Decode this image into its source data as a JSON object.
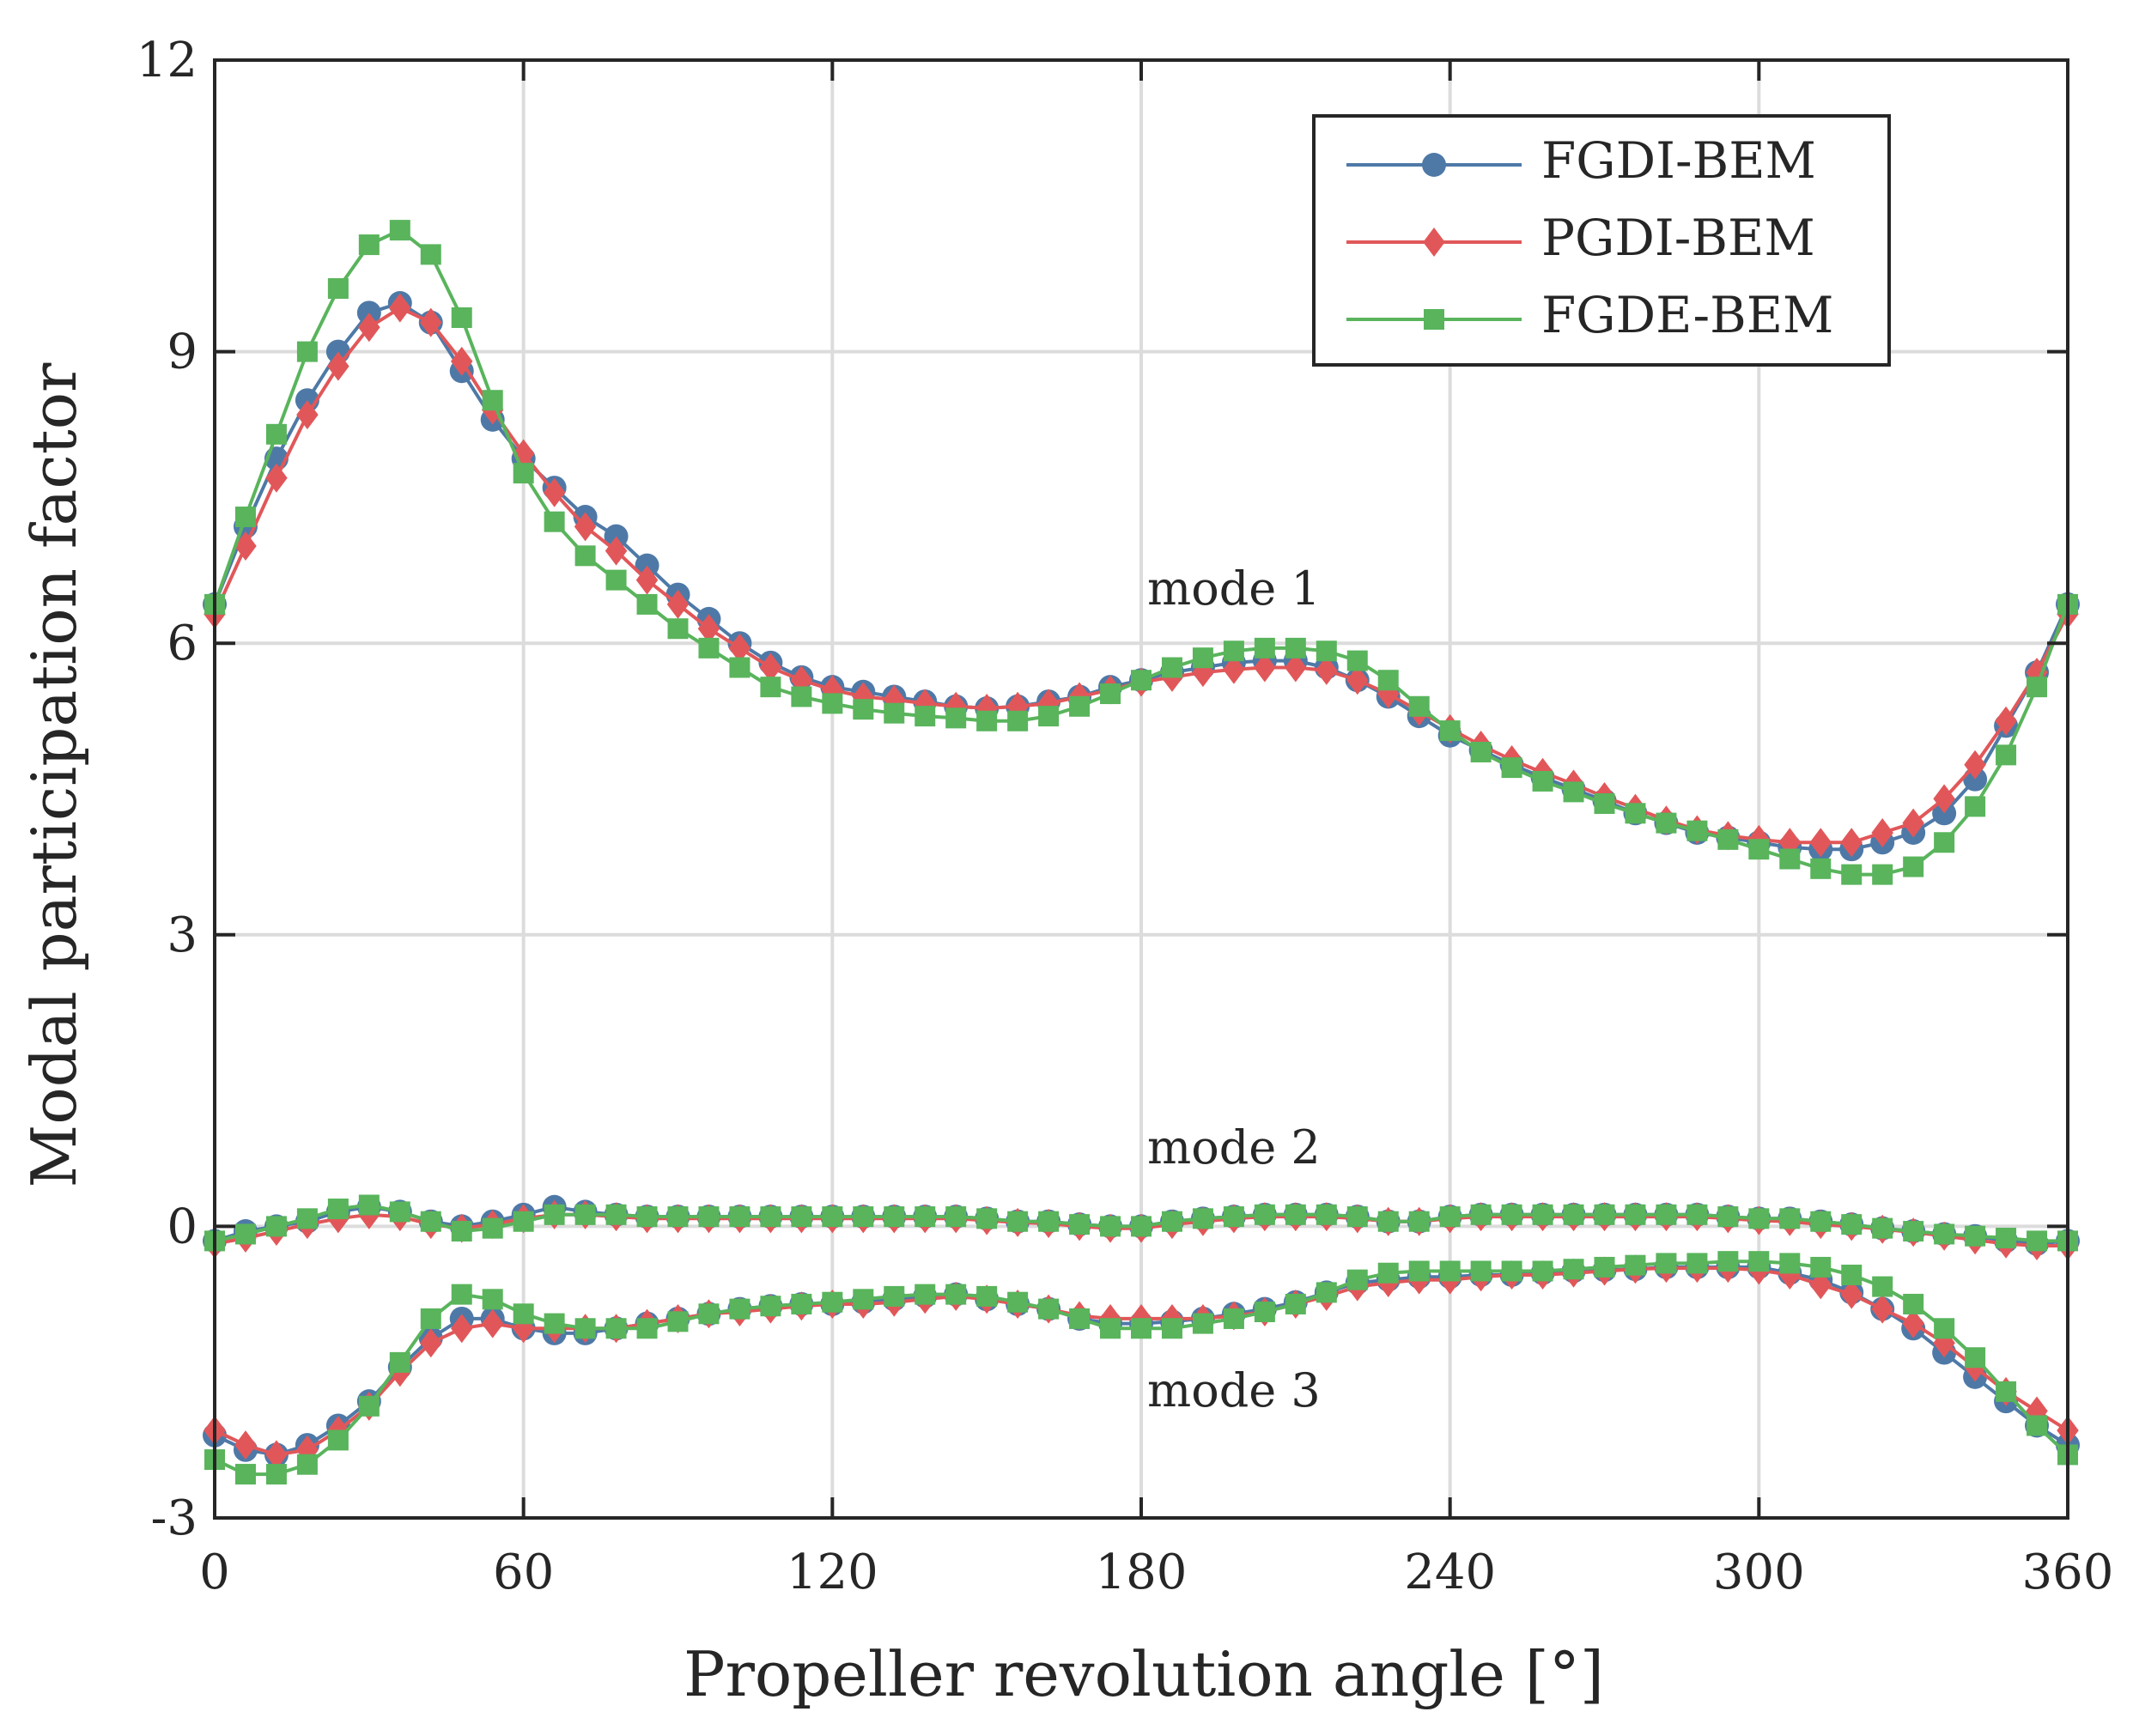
{
  "chart_data": {
    "type": "line",
    "xlabel": "Propeller revolution angle [°]",
    "ylabel": "Modal participation factor",
    "xlim": [
      0,
      360
    ],
    "ylim": [
      -3,
      12
    ],
    "xticks": [
      0,
      60,
      120,
      180,
      240,
      300,
      360
    ],
    "yticks": [
      -3,
      0,
      3,
      6,
      9,
      12
    ],
    "grid": true,
    "legend_position": "top-right",
    "legend": [
      "FGDI-BEM",
      "PGDI-BEM",
      "FGDE-BEM"
    ],
    "annotations": [
      {
        "text": "mode 1",
        "x": 198,
        "y": 6.4
      },
      {
        "text": "mode 2",
        "x": 198,
        "y": 0.65
      },
      {
        "text": "mode 3",
        "x": 198,
        "y": -1.85
      }
    ],
    "x": [
      0,
      6,
      12,
      18,
      24,
      30,
      36,
      42,
      48,
      54,
      60,
      66,
      72,
      78,
      84,
      90,
      96,
      102,
      108,
      114,
      120,
      126,
      132,
      138,
      144,
      150,
      156,
      162,
      168,
      174,
      180,
      186,
      192,
      198,
      204,
      210,
      216,
      222,
      228,
      234,
      240,
      246,
      252,
      258,
      264,
      270,
      276,
      282,
      288,
      294,
      300,
      306,
      312,
      318,
      324,
      330,
      336,
      342,
      348,
      354,
      360
    ],
    "series": [
      {
        "name": "FGDI-BEM",
        "mode": "mode 1",
        "color": "#4e79a7",
        "marker": "circle",
        "values": [
          6.4,
          7.2,
          7.9,
          8.5,
          9.0,
          9.4,
          9.5,
          9.3,
          8.8,
          8.3,
          7.9,
          7.6,
          7.3,
          7.1,
          6.8,
          6.5,
          6.25,
          6.0,
          5.8,
          5.65,
          5.55,
          5.5,
          5.45,
          5.4,
          5.35,
          5.33,
          5.35,
          5.4,
          5.45,
          5.55,
          5.62,
          5.7,
          5.75,
          5.8,
          5.82,
          5.82,
          5.75,
          5.62,
          5.45,
          5.25,
          5.05,
          4.9,
          4.75,
          4.62,
          4.5,
          4.38,
          4.25,
          4.15,
          4.05,
          4.0,
          3.95,
          3.9,
          3.88,
          3.88,
          3.95,
          4.05,
          4.25,
          4.6,
          5.15,
          5.7,
          6.4
        ]
      },
      {
        "name": "FGDI-BEM",
        "mode": "mode 2",
        "color": "#4e79a7",
        "marker": "circle",
        "values": [
          -0.15,
          -0.05,
          0.0,
          0.05,
          0.15,
          0.2,
          0.15,
          0.05,
          0.0,
          0.05,
          0.12,
          0.2,
          0.15,
          0.12,
          0.1,
          0.1,
          0.1,
          0.1,
          0.1,
          0.1,
          0.1,
          0.1,
          0.1,
          0.1,
          0.1,
          0.08,
          0.05,
          0.05,
          0.02,
          0.0,
          0.0,
          0.05,
          0.08,
          0.1,
          0.12,
          0.12,
          0.12,
          0.1,
          0.05,
          0.05,
          0.1,
          0.12,
          0.12,
          0.12,
          0.12,
          0.12,
          0.12,
          0.12,
          0.12,
          0.1,
          0.08,
          0.08,
          0.05,
          0.02,
          -0.02,
          -0.05,
          -0.08,
          -0.1,
          -0.15,
          -0.18,
          -0.15
        ]
      },
      {
        "name": "FGDI-BEM",
        "mode": "mode 3",
        "color": "#4e79a7",
        "marker": "circle",
        "values": [
          -2.15,
          -2.3,
          -2.35,
          -2.25,
          -2.05,
          -1.8,
          -1.45,
          -1.15,
          -0.95,
          -0.95,
          -1.05,
          -1.1,
          -1.1,
          -1.05,
          -1.0,
          -0.95,
          -0.9,
          -0.85,
          -0.82,
          -0.8,
          -0.8,
          -0.78,
          -0.75,
          -0.72,
          -0.7,
          -0.75,
          -0.8,
          -0.85,
          -0.95,
          -1.0,
          -1.0,
          -0.98,
          -0.95,
          -0.9,
          -0.85,
          -0.78,
          -0.68,
          -0.58,
          -0.55,
          -0.52,
          -0.52,
          -0.5,
          -0.5,
          -0.48,
          -0.46,
          -0.45,
          -0.44,
          -0.42,
          -0.42,
          -0.42,
          -0.42,
          -0.48,
          -0.55,
          -0.68,
          -0.85,
          -1.05,
          -1.3,
          -1.55,
          -1.8,
          -2.05,
          -2.25
        ]
      },
      {
        "name": "PGDI-BEM",
        "mode": "mode 1",
        "color": "#e15759",
        "marker": "diamond",
        "values": [
          6.3,
          7.0,
          7.7,
          8.35,
          8.85,
          9.25,
          9.45,
          9.3,
          8.9,
          8.4,
          7.95,
          7.55,
          7.2,
          6.95,
          6.65,
          6.4,
          6.15,
          5.95,
          5.75,
          5.62,
          5.52,
          5.45,
          5.42,
          5.38,
          5.35,
          5.33,
          5.35,
          5.38,
          5.45,
          5.52,
          5.6,
          5.65,
          5.7,
          5.73,
          5.75,
          5.75,
          5.72,
          5.62,
          5.48,
          5.3,
          5.12,
          4.95,
          4.8,
          4.67,
          4.55,
          4.42,
          4.3,
          4.18,
          4.08,
          4.02,
          3.98,
          3.95,
          3.95,
          3.95,
          4.05,
          4.15,
          4.4,
          4.75,
          5.2,
          5.7,
          6.3
        ]
      },
      {
        "name": "PGDI-BEM",
        "mode": "mode 2",
        "color": "#e15759",
        "marker": "diamond",
        "values": [
          -0.18,
          -0.12,
          -0.05,
          0.02,
          0.08,
          0.12,
          0.1,
          0.02,
          -0.02,
          0.02,
          0.08,
          0.12,
          0.12,
          0.1,
          0.08,
          0.08,
          0.08,
          0.08,
          0.08,
          0.08,
          0.08,
          0.08,
          0.08,
          0.08,
          0.08,
          0.06,
          0.04,
          0.03,
          0.0,
          -0.02,
          -0.02,
          0.02,
          0.05,
          0.08,
          0.1,
          0.1,
          0.1,
          0.08,
          0.05,
          0.05,
          0.08,
          0.1,
          0.1,
          0.1,
          0.1,
          0.1,
          0.1,
          0.1,
          0.1,
          0.08,
          0.06,
          0.05,
          0.02,
          0.0,
          -0.03,
          -0.06,
          -0.1,
          -0.14,
          -0.18,
          -0.2,
          -0.2
        ]
      },
      {
        "name": "PGDI-BEM",
        "mode": "mode 3",
        "color": "#e15759",
        "marker": "diamond",
        "values": [
          -2.1,
          -2.25,
          -2.35,
          -2.3,
          -2.1,
          -1.85,
          -1.5,
          -1.2,
          -1.05,
          -1.0,
          -1.05,
          -1.05,
          -1.05,
          -1.05,
          -1.0,
          -0.95,
          -0.9,
          -0.88,
          -0.85,
          -0.82,
          -0.8,
          -0.8,
          -0.78,
          -0.75,
          -0.72,
          -0.75,
          -0.8,
          -0.85,
          -0.92,
          -0.95,
          -0.95,
          -0.95,
          -0.95,
          -0.92,
          -0.88,
          -0.8,
          -0.72,
          -0.62,
          -0.58,
          -0.55,
          -0.55,
          -0.52,
          -0.5,
          -0.5,
          -0.48,
          -0.46,
          -0.44,
          -0.43,
          -0.43,
          -0.43,
          -0.45,
          -0.5,
          -0.6,
          -0.7,
          -0.85,
          -1.0,
          -1.2,
          -1.45,
          -1.7,
          -1.9,
          -2.1
        ]
      },
      {
        "name": "FGDE-BEM",
        "mode": "mode 1",
        "color": "#59b45c",
        "marker": "square",
        "values": [
          6.4,
          7.3,
          8.15,
          9.0,
          9.65,
          10.1,
          10.25,
          10.0,
          9.35,
          8.5,
          7.75,
          7.25,
          6.9,
          6.65,
          6.4,
          6.15,
          5.95,
          5.75,
          5.55,
          5.45,
          5.38,
          5.32,
          5.28,
          5.25,
          5.23,
          5.2,
          5.2,
          5.25,
          5.35,
          5.48,
          5.62,
          5.75,
          5.85,
          5.92,
          5.95,
          5.95,
          5.92,
          5.82,
          5.62,
          5.35,
          5.1,
          4.88,
          4.72,
          4.58,
          4.47,
          4.35,
          4.25,
          4.15,
          4.07,
          3.98,
          3.88,
          3.78,
          3.68,
          3.62,
          3.62,
          3.7,
          3.95,
          4.32,
          4.85,
          5.55,
          6.4
        ]
      },
      {
        "name": "FGDE-BEM",
        "mode": "mode 2",
        "color": "#59b45c",
        "marker": "square",
        "values": [
          -0.15,
          -0.08,
          0.0,
          0.08,
          0.18,
          0.22,
          0.15,
          0.05,
          -0.05,
          -0.02,
          0.05,
          0.12,
          0.12,
          0.12,
          0.1,
          0.1,
          0.1,
          0.1,
          0.1,
          0.1,
          0.1,
          0.1,
          0.1,
          0.1,
          0.1,
          0.08,
          0.05,
          0.05,
          0.02,
          0.0,
          0.0,
          0.05,
          0.08,
          0.1,
          0.12,
          0.12,
          0.12,
          0.1,
          0.05,
          0.05,
          0.1,
          0.12,
          0.12,
          0.12,
          0.12,
          0.12,
          0.12,
          0.12,
          0.12,
          0.1,
          0.08,
          0.08,
          0.05,
          0.02,
          -0.02,
          -0.05,
          -0.08,
          -0.1,
          -0.12,
          -0.15,
          -0.15
        ]
      },
      {
        "name": "FGDE-BEM",
        "mode": "mode 3",
        "color": "#59b45c",
        "marker": "square",
        "values": [
          -2.4,
          -2.55,
          -2.55,
          -2.45,
          -2.2,
          -1.85,
          -1.4,
          -0.95,
          -0.7,
          -0.75,
          -0.9,
          -1.0,
          -1.05,
          -1.05,
          -1.05,
          -0.98,
          -0.9,
          -0.85,
          -0.82,
          -0.8,
          -0.78,
          -0.75,
          -0.72,
          -0.7,
          -0.7,
          -0.72,
          -0.78,
          -0.85,
          -0.95,
          -1.05,
          -1.05,
          -1.05,
          -1.0,
          -0.95,
          -0.88,
          -0.8,
          -0.68,
          -0.55,
          -0.48,
          -0.46,
          -0.46,
          -0.46,
          -0.46,
          -0.46,
          -0.44,
          -0.42,
          -0.4,
          -0.38,
          -0.38,
          -0.36,
          -0.36,
          -0.38,
          -0.42,
          -0.5,
          -0.62,
          -0.8,
          -1.05,
          -1.35,
          -1.7,
          -2.05,
          -2.35
        ]
      }
    ]
  }
}
